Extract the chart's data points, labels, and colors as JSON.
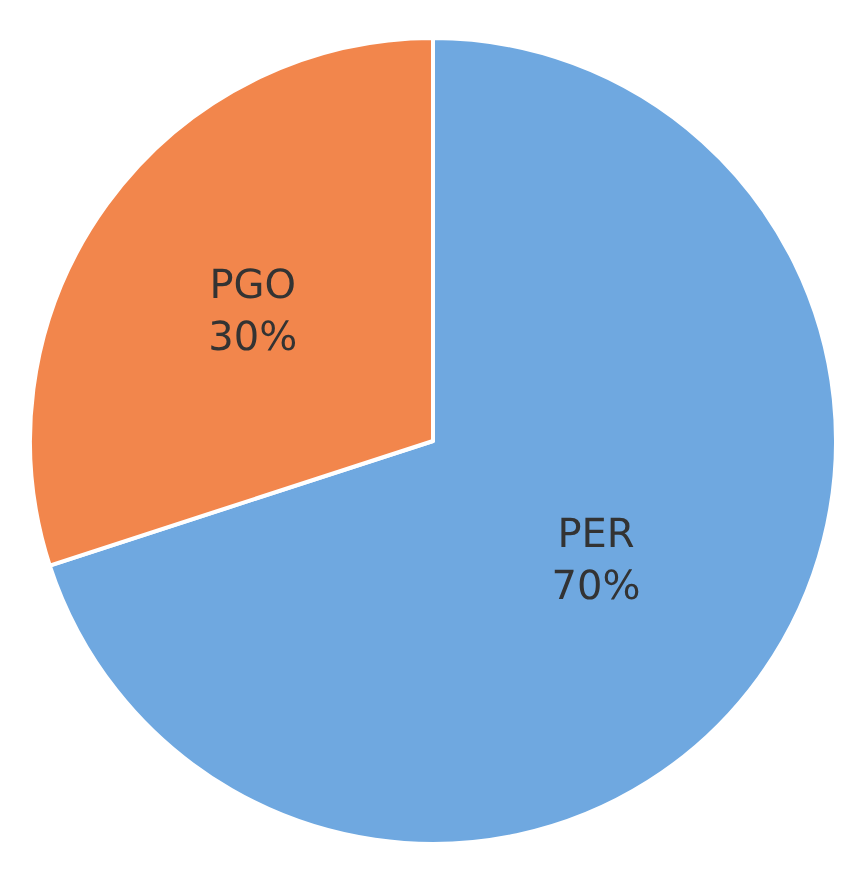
{
  "chart_data": {
    "type": "pie",
    "categories": [
      "PER",
      "PGO"
    ],
    "values": [
      70,
      30
    ],
    "value_labels": [
      "70%",
      "30%"
    ],
    "colors": [
      "#6fa8e0",
      "#f2864c"
    ],
    "legend": false
  }
}
